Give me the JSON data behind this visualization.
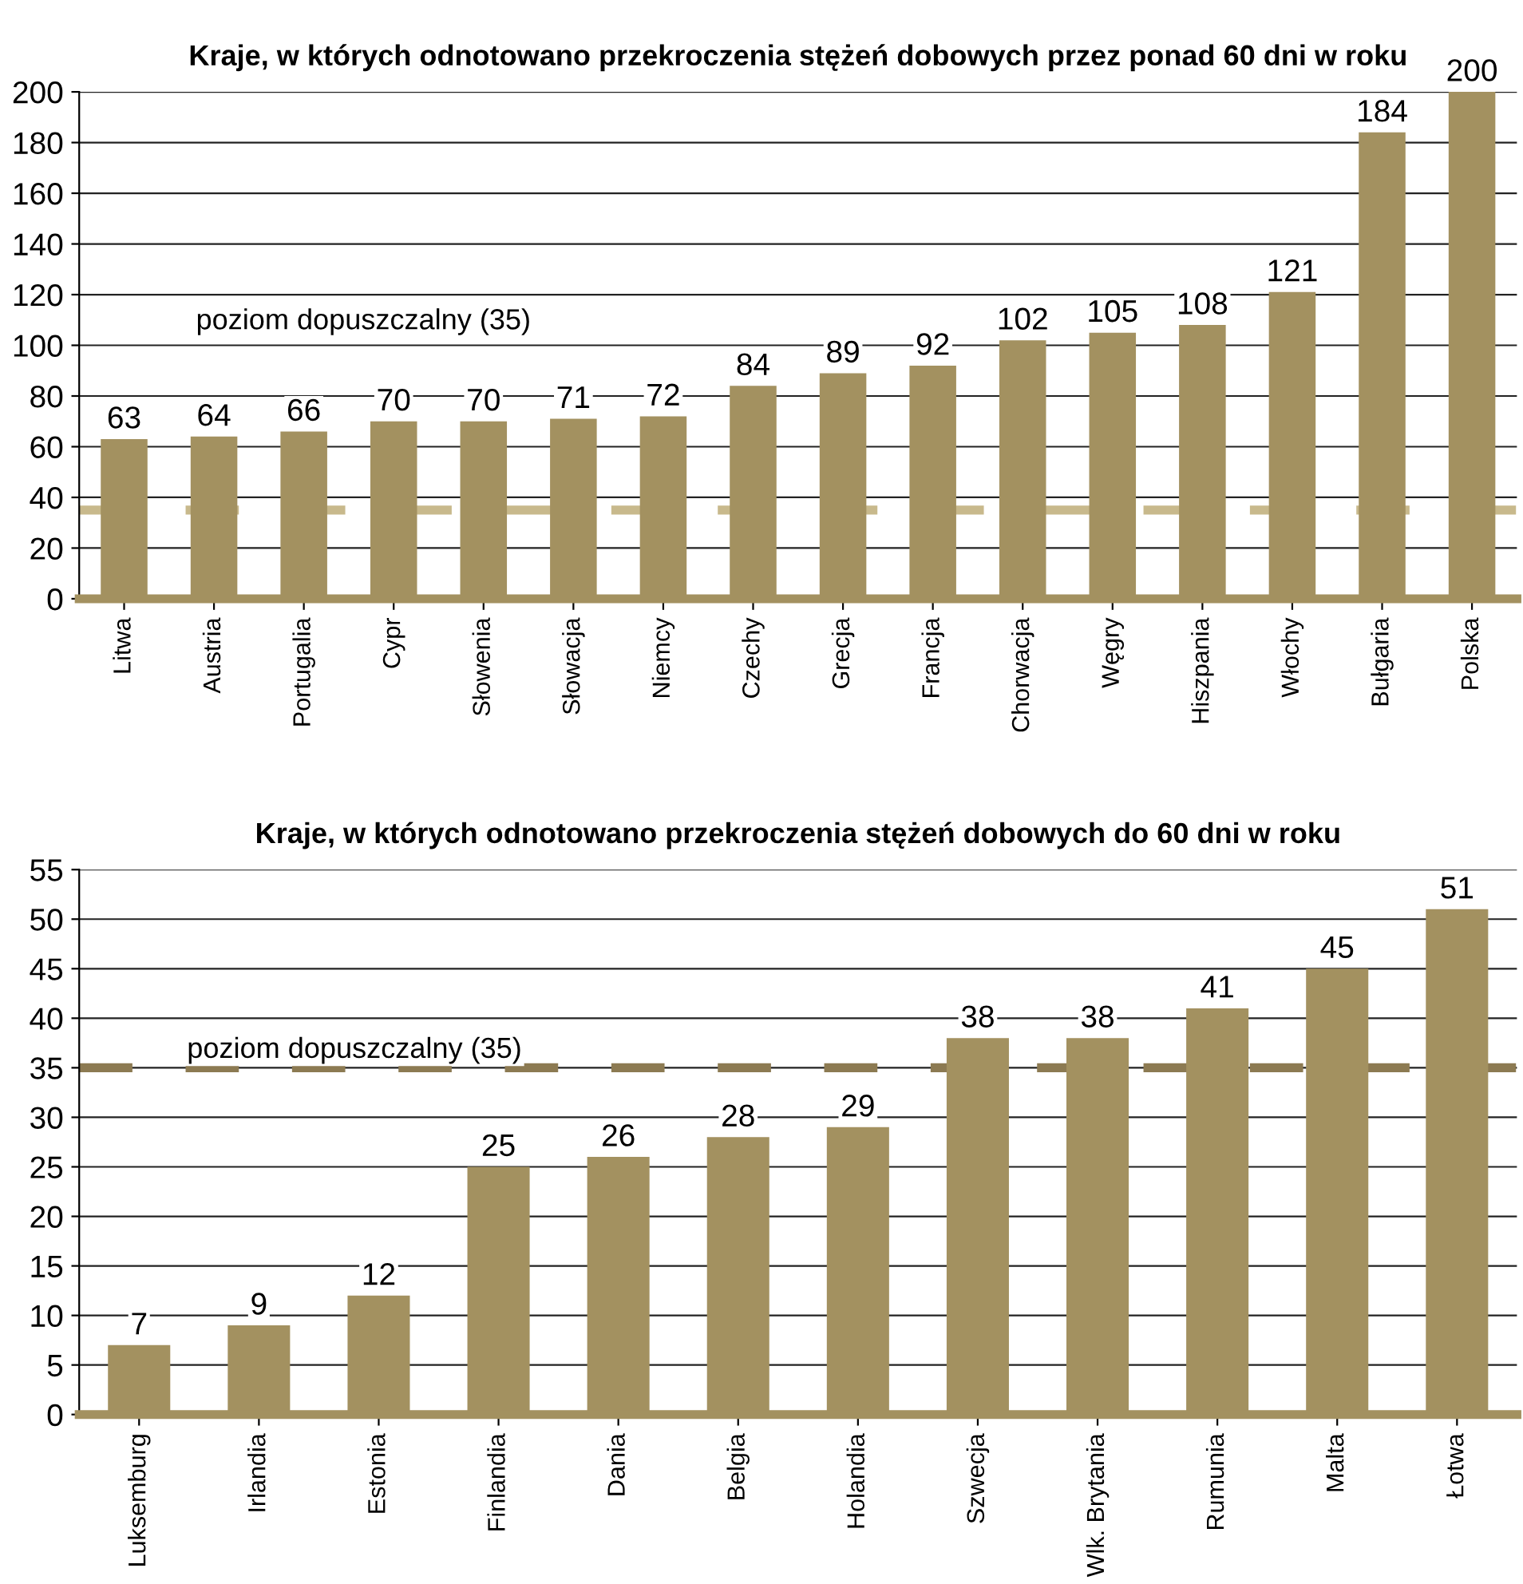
{
  "chart_data": [
    {
      "type": "bar",
      "title": "Kraje, w których odnotowano przekroczenia stężeń dobowych przez ponad 60 dni w roku",
      "categories": [
        "Litwa",
        "Austria",
        "Portugalia",
        "Cypr",
        "Słowenia",
        "Słowacja",
        "Niemcy",
        "Czechy",
        "Grecja",
        "Francja",
        "Chorwacja",
        "Węgry",
        "Hiszpania",
        "Włochy",
        "Bułgaria",
        "Polska"
      ],
      "values": [
        63,
        64,
        66,
        70,
        70,
        71,
        72,
        84,
        89,
        92,
        102,
        105,
        108,
        121,
        184,
        200
      ],
      "color": "#a39160",
      "ylim": [
        0,
        200
      ],
      "yticks": [
        0,
        20,
        40,
        60,
        80,
        100,
        120,
        140,
        160,
        180,
        200
      ],
      "grid": "y",
      "data_labels": true,
      "annotations": [
        "poziom dopuszczalny (35)"
      ],
      "ref_lines": [
        {
          "axis": "y",
          "value": 35,
          "color": "#c8b98c",
          "line_style": "dashed"
        }
      ]
    },
    {
      "type": "bar",
      "title": "Kraje, w których odnotowano przekroczenia stężeń dobowych do 60 dni w roku",
      "categories": [
        "Luksemburg",
        "Irlandia",
        "Estonia",
        "Finlandia",
        "Dania",
        "Belgia",
        "Holandia",
        "Szwecja",
        "Wlk. Brytania",
        "Rumunia",
        "Malta",
        "Łotwa"
      ],
      "values": [
        7,
        9,
        12,
        25,
        26,
        28,
        29,
        38,
        38,
        41,
        45,
        51
      ],
      "color": "#a39160",
      "ylim": [
        0,
        55
      ],
      "yticks": [
        0,
        5,
        10,
        15,
        20,
        25,
        30,
        35,
        40,
        45,
        50,
        55
      ],
      "grid": "y",
      "data_labels": true,
      "ref_lines": [
        {
          "axis": "y",
          "value": 35,
          "label": "poziom dopuszczalny (35)",
          "color": "#8c7a52",
          "line_style": "dashed"
        }
      ]
    }
  ]
}
